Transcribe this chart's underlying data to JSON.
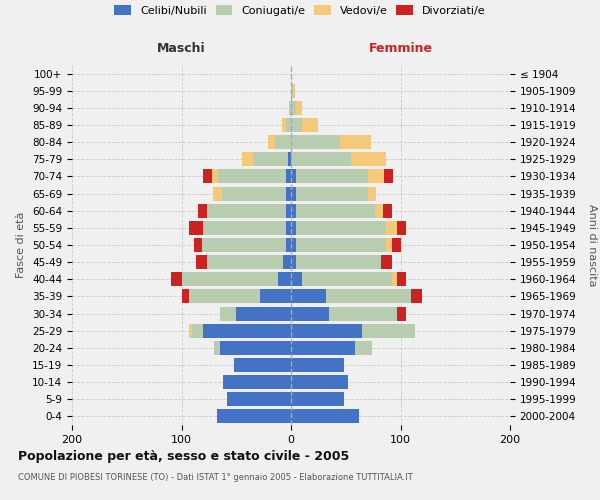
{
  "age_groups": [
    "0-4",
    "5-9",
    "10-14",
    "15-19",
    "20-24",
    "25-29",
    "30-34",
    "35-39",
    "40-44",
    "45-49",
    "50-54",
    "55-59",
    "60-64",
    "65-69",
    "70-74",
    "75-79",
    "80-84",
    "85-89",
    "90-94",
    "95-99",
    "100+"
  ],
  "birth_years": [
    "2000-2004",
    "1995-1999",
    "1990-1994",
    "1985-1989",
    "1980-1984",
    "1975-1979",
    "1970-1974",
    "1965-1969",
    "1960-1964",
    "1955-1959",
    "1950-1954",
    "1945-1949",
    "1940-1944",
    "1935-1939",
    "1930-1934",
    "1925-1929",
    "1920-1924",
    "1915-1919",
    "1910-1914",
    "1905-1909",
    "≤ 1904"
  ],
  "colors": {
    "celibi": "#4472C4",
    "coniugati": "#B8CCB0",
    "vedovi": "#F5C97A",
    "divorziati": "#CC2222"
  },
  "maschi": {
    "celibi": [
      68,
      58,
      62,
      52,
      65,
      80,
      50,
      28,
      12,
      7,
      5,
      5,
      5,
      5,
      5,
      3,
      0,
      0,
      0,
      0,
      0
    ],
    "coniugati": [
      0,
      0,
      0,
      0,
      5,
      10,
      15,
      65,
      88,
      70,
      76,
      75,
      72,
      58,
      62,
      32,
      15,
      5,
      2,
      0,
      0
    ],
    "vedovi": [
      0,
      0,
      0,
      0,
      0,
      3,
      0,
      0,
      0,
      0,
      0,
      0,
      0,
      8,
      5,
      10,
      6,
      3,
      0,
      0,
      0
    ],
    "divorziati": [
      0,
      0,
      0,
      0,
      0,
      0,
      0,
      7,
      10,
      10,
      8,
      13,
      8,
      0,
      8,
      0,
      0,
      0,
      0,
      0,
      0
    ]
  },
  "femmine": {
    "celibi": [
      62,
      48,
      52,
      48,
      58,
      65,
      35,
      32,
      10,
      5,
      5,
      5,
      5,
      5,
      5,
      0,
      0,
      0,
      0,
      0,
      0
    ],
    "coniugati": [
      0,
      0,
      0,
      0,
      16,
      48,
      62,
      78,
      82,
      77,
      82,
      82,
      72,
      65,
      65,
      55,
      45,
      10,
      5,
      2,
      0
    ],
    "vedovi": [
      0,
      0,
      0,
      0,
      0,
      0,
      0,
      0,
      5,
      0,
      5,
      10,
      7,
      8,
      15,
      32,
      28,
      15,
      5,
      2,
      0
    ],
    "divorziati": [
      0,
      0,
      0,
      0,
      0,
      0,
      8,
      10,
      8,
      10,
      8,
      8,
      8,
      0,
      8,
      0,
      0,
      0,
      0,
      0,
      0
    ]
  },
  "xlim": 200,
  "title": "Popolazione per età, sesso e stato civile - 2005",
  "subtitle": "COMUNE DI PIOBESI TORINESE (TO) - Dati ISTAT 1° gennaio 2005 - Elaborazione TUTTITALIA.IT",
  "ylabel_left": "Fasce di età",
  "ylabel_right": "Anni di nascita",
  "xlabel_left": "Maschi",
  "xlabel_right": "Femmine",
  "legend_labels": [
    "Celibi/Nubili",
    "Coniugati/e",
    "Vedovi/e",
    "Divorziati/e"
  ],
  "legend_colors": [
    "#4472C4",
    "#B8CCB0",
    "#F5C97A",
    "#CC2222"
  ],
  "background_color": "#F0F0F0",
  "grid_color": "#CCCCCC"
}
